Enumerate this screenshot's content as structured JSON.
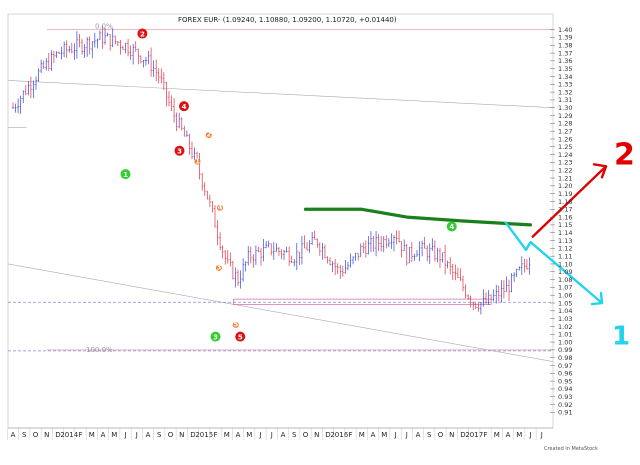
{
  "chart_data": {
    "type": "ohlc",
    "title": "FOREX EUR- (1.09240, 1.10880, 1.09200, 1.10720, +0.01440)",
    "credit": "Created in MetaStock",
    "x_labels": [
      "A",
      "S",
      "O",
      "N",
      "D",
      "2014",
      "F",
      "M",
      "A",
      "M",
      "J",
      "J",
      "A",
      "S",
      "O",
      "N",
      "D",
      "2015",
      "F",
      "M",
      "A",
      "M",
      "J",
      "J",
      "A",
      "S",
      "O",
      "N",
      "D",
      "2016",
      "F",
      "M",
      "A",
      "M",
      "J",
      "J",
      "A",
      "S",
      "O",
      "N",
      "D",
      "2017",
      "F",
      "M",
      "A",
      "M",
      "J",
      "J"
    ],
    "y_range": [
      0.89,
      1.42
    ],
    "y_ticks": [
      1.4,
      1.39,
      1.38,
      1.37,
      1.36,
      1.35,
      1.34,
      1.33,
      1.32,
      1.31,
      1.3,
      1.29,
      1.28,
      1.27,
      1.26,
      1.25,
      1.24,
      1.23,
      1.22,
      1.21,
      1.2,
      1.19,
      1.18,
      1.17,
      1.16,
      1.15,
      1.14,
      1.13,
      1.12,
      1.11,
      1.1,
      1.09,
      1.08,
      1.07,
      1.06,
      1.05,
      1.04,
      1.03,
      1.02,
      1.01,
      1.0,
      0.99,
      0.98,
      0.97,
      0.96,
      0.95,
      0.94,
      0.93,
      0.92,
      0.91
    ],
    "last_close": 1.1072,
    "price_path": [
      [
        0,
        1.3
      ],
      [
        2,
        1.34
      ],
      [
        4,
        1.37
      ],
      [
        6,
        1.38
      ],
      [
        8,
        1.39
      ],
      [
        10,
        1.38
      ],
      [
        12,
        1.36
      ],
      [
        13,
        1.34
      ],
      [
        14,
        1.3
      ],
      [
        15,
        1.27
      ],
      [
        16,
        1.24
      ],
      [
        17,
        1.2
      ],
      [
        18,
        1.15
      ],
      [
        19,
        1.1
      ],
      [
        20,
        1.08
      ],
      [
        21,
        1.11
      ],
      [
        23,
        1.12
      ],
      [
        25,
        1.11
      ],
      [
        27,
        1.13
      ],
      [
        28,
        1.11
      ],
      [
        29,
        1.09
      ],
      [
        30,
        1.1
      ],
      [
        31,
        1.12
      ],
      [
        33,
        1.13
      ],
      [
        34,
        1.14
      ],
      [
        35,
        1.11
      ],
      [
        36,
        1.12
      ],
      [
        38,
        1.11
      ],
      [
        39,
        1.09
      ],
      [
        40,
        1.07
      ],
      [
        41,
        1.05
      ],
      [
        42,
        1.05
      ],
      [
        43,
        1.06
      ],
      [
        44,
        1.07
      ],
      [
        45,
        1.09
      ],
      [
        46,
        1.107
      ]
    ],
    "levels": [
      {
        "label": "0.0%",
        "value": 1.4
      },
      {
        "label": "100.0%",
        "value": 0.99
      }
    ],
    "dashed_levels": [
      1.051
    ],
    "resistance_curve": [
      [
        26,
        1.17
      ],
      [
        31,
        1.17
      ],
      [
        35,
        1.16
      ],
      [
        40,
        1.155
      ],
      [
        46,
        1.15
      ]
    ],
    "wave_labels_major": [
      {
        "label": "2",
        "x": 11.5,
        "y": 1.395
      },
      {
        "label": "4",
        "x": 15.2,
        "y": 1.302
      },
      {
        "label": "3",
        "x": 14.8,
        "y": 1.245
      },
      {
        "label": "5",
        "x": 20.2,
        "y": 1.007
      }
    ],
    "wave_labels_minor": [
      {
        "label": "2",
        "x": 17.4,
        "y": 1.265
      },
      {
        "label": "1",
        "x": 16.4,
        "y": 1.231
      },
      {
        "label": "4",
        "x": 18.4,
        "y": 1.172
      },
      {
        "label": "3",
        "x": 18.3,
        "y": 1.095
      },
      {
        "label": "5",
        "x": 19.8,
        "y": 1.022
      }
    ],
    "green_labels": [
      {
        "label": "1",
        "x": 10.0,
        "y": 1.215
      },
      {
        "label": "3",
        "x": 18.0,
        "y": 1.007
      },
      {
        "label": "4",
        "x": 39.0,
        "y": 1.148
      }
    ],
    "projections": [
      {
        "label": "2",
        "color": "#e00000",
        "target_y": 1.225
      },
      {
        "label": "1",
        "color": "#22d3ee",
        "target_y": 1.01
      }
    ]
  }
}
